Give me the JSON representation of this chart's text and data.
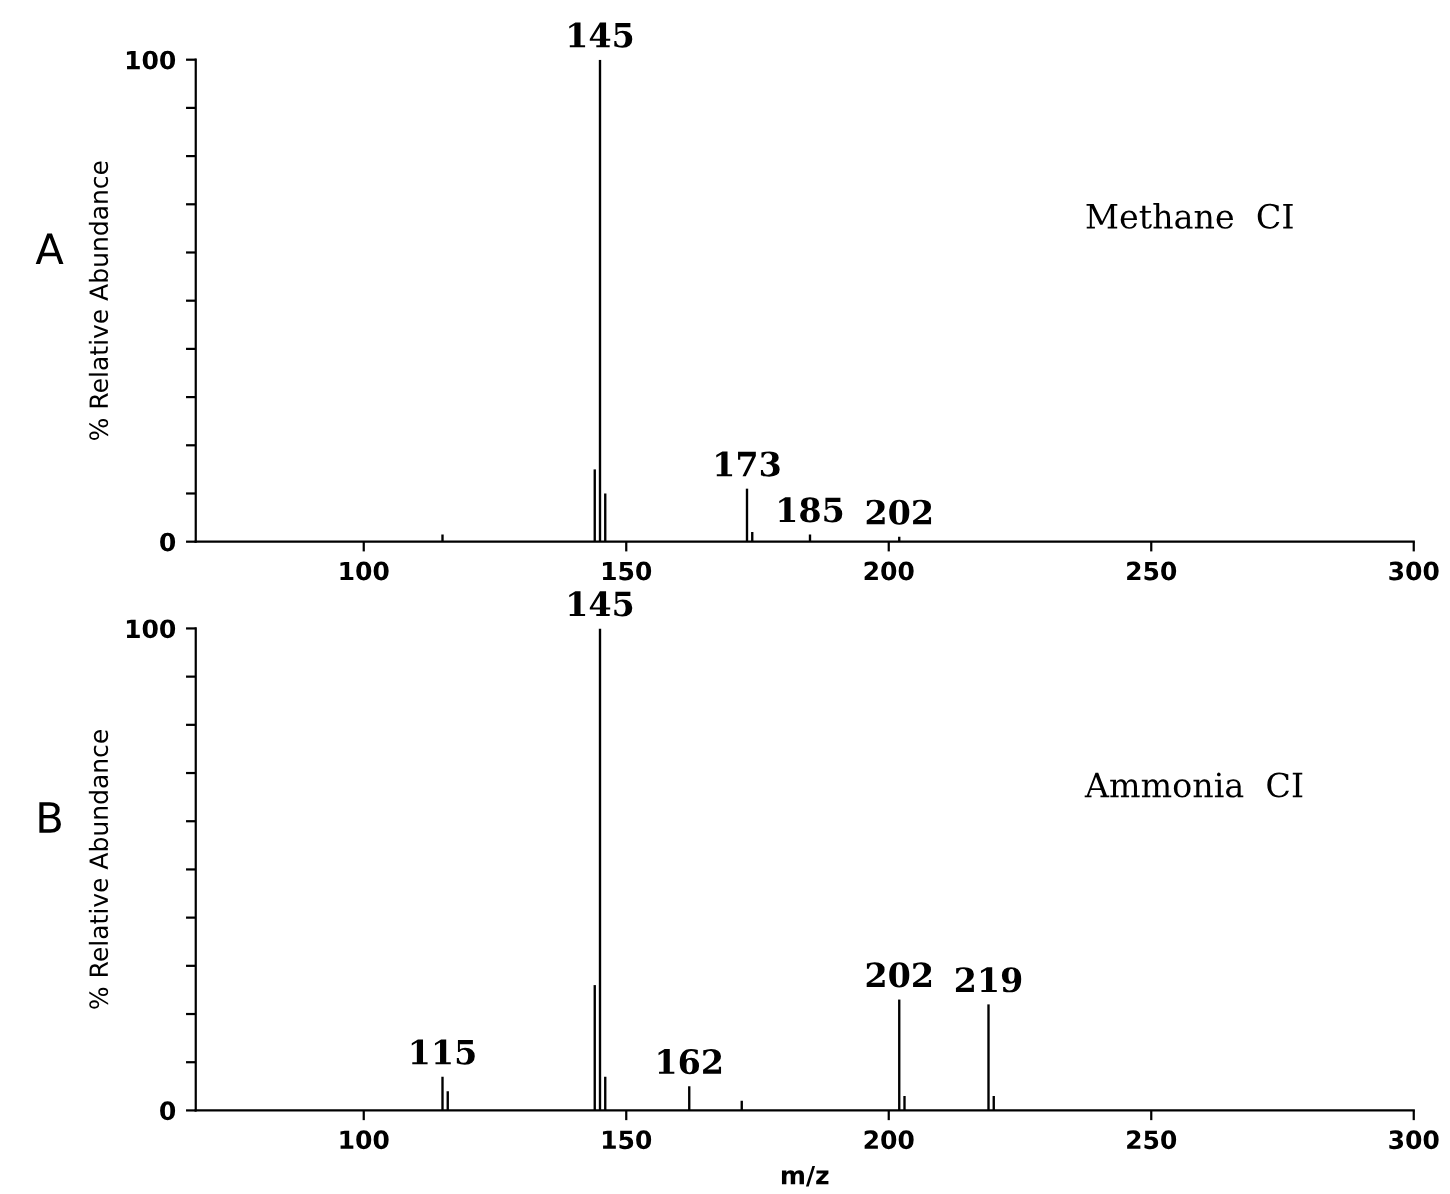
{
  "chart_data": [
    {
      "type": "bar",
      "title": "A",
      "ylabel": "% Relative Abundance",
      "x": [
        115,
        144,
        145,
        146,
        173,
        174,
        185,
        202
      ],
      "values": [
        1.5,
        15,
        100,
        10,
        11,
        2,
        1.5,
        1
      ],
      "color": "#000000",
      "xlim": [
        68,
        300
      ],
      "ylim": [
        0,
        100
      ],
      "xticks": [
        100,
        150,
        200,
        250,
        300
      ],
      "yticks": [
        0,
        {
          "value": 10,
          "label": null
        },
        {
          "value": 20,
          "label": null
        },
        {
          "value": 30,
          "label": null
        },
        {
          "value": 40,
          "label": null
        },
        {
          "value": 50,
          "label": null
        },
        {
          "value": 60,
          "label": null
        },
        {
          "value": 70,
          "label": null
        },
        {
          "value": 80,
          "label": null
        },
        {
          "value": 90,
          "label": null
        },
        100
      ],
      "grid": false,
      "legend": false,
      "annotations": [
        {
          "text": "145",
          "x": 145,
          "y": 100
        },
        {
          "text": "173",
          "x": 173,
          "y": 11
        },
        {
          "text": "185",
          "x": 185,
          "y": 1.5
        },
        {
          "text": "202",
          "x": 202,
          "y": 1
        },
        "Methane  CI"
      ]
    },
    {
      "type": "bar",
      "title": "B",
      "ylabel": "% Relative Abundance",
      "xlabel": "m/z",
      "x": [
        115,
        116,
        144,
        145,
        146,
        162,
        172,
        202,
        203,
        219,
        220
      ],
      "values": [
        7,
        4,
        26,
        100,
        7,
        5,
        2,
        23,
        3,
        22,
        3
      ],
      "color": "#000000",
      "xlim": [
        68,
        300
      ],
      "ylim": [
        0,
        100
      ],
      "xticks": [
        100,
        150,
        200,
        250,
        300
      ],
      "yticks": [
        0,
        {
          "value": 10,
          "label": null
        },
        {
          "value": 20,
          "label": null
        },
        {
          "value": 30,
          "label": null
        },
        {
          "value": 40,
          "label": null
        },
        {
          "value": 50,
          "label": null
        },
        {
          "value": 60,
          "label": null
        },
        {
          "value": 70,
          "label": null
        },
        {
          "value": 80,
          "label": null
        },
        {
          "value": 90,
          "label": null
        },
        100
      ],
      "grid": false,
      "legend": false,
      "annotations": [
        {
          "text": "145",
          "x": 145,
          "y": 100
        },
        {
          "text": "115",
          "x": 115,
          "y": 7
        },
        {
          "text": "162",
          "x": 162,
          "y": 5
        },
        {
          "text": "202",
          "x": 202,
          "y": 23
        },
        {
          "text": "219",
          "x": 219,
          "y": 22
        },
        "Ammonia  CI"
      ]
    }
  ]
}
